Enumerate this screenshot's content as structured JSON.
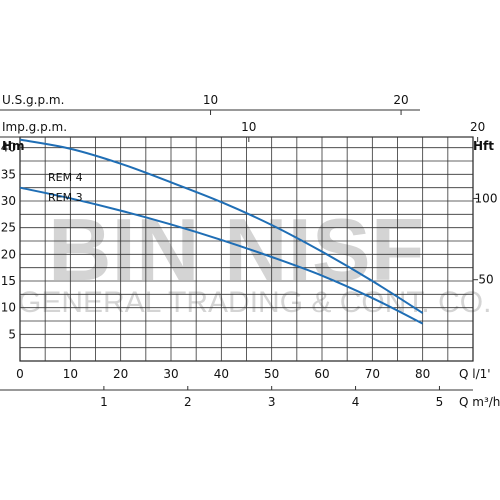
{
  "chart_data": {
    "type": "line",
    "title": "",
    "units": {
      "us_gpm": "U.S.g.p.m.",
      "imp_gpm": "Imp.g.p.m.",
      "head_m": "Hm",
      "head_ft": "Hft",
      "flow_lpm": "Q  l/1'",
      "flow_m3h": "Q  m³/h"
    },
    "x_lpm": {
      "ticks": [
        "0",
        "10",
        "20",
        "30",
        "40",
        "50",
        "60",
        "70",
        "80"
      ],
      "xlim": [
        0,
        90
      ]
    },
    "x_m3h": {
      "ticks": [
        "1",
        "2",
        "3",
        "4",
        "5"
      ]
    },
    "x_usgpm": {
      "ticks": [
        "10",
        "20"
      ]
    },
    "x_impgpm": {
      "ticks": [
        "10",
        "20"
      ]
    },
    "y_m": {
      "ticks": [
        "5",
        "10",
        "15",
        "20",
        "25",
        "30",
        "35",
        "40"
      ],
      "ylim": [
        0,
        42
      ]
    },
    "y_ft": {
      "ticks": [
        "50",
        "100"
      ]
    },
    "grid": true,
    "series": [
      {
        "name": "REM 4",
        "color": "#1f6eb5",
        "x": [
          0,
          10,
          20,
          30,
          40,
          50,
          60,
          70,
          80
        ],
        "y": [
          41.5,
          39.8,
          37.0,
          33.5,
          29.8,
          25.5,
          20.5,
          15.0,
          9.0
        ]
      },
      {
        "name": "REM 3",
        "color": "#1f6eb5",
        "x": [
          0,
          10,
          20,
          30,
          40,
          50,
          60,
          70,
          80
        ],
        "y": [
          32.5,
          30.5,
          28.2,
          25.6,
          22.7,
          19.5,
          16.0,
          11.8,
          7.0
        ]
      }
    ]
  },
  "watermark": {
    "line1": "BIN NISF",
    "line2": "GENERAL TRADING & CONT. CO."
  }
}
